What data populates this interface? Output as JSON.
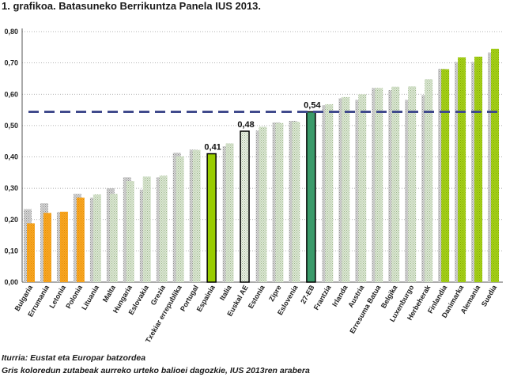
{
  "title": "1. grafikoa. Batasuneko Berrikuntza Panela IUS 2013.",
  "notes": {
    "source": "Iturria: Eustat eta Europar batzordea",
    "grey_bars": "Gris koloredun zutabeak aurreko urteko balioei dagozkie, IUS 2013ren arabera"
  },
  "colors": {
    "grey_bar": "#c8c8c8",
    "orange": "#f7a21e",
    "light_green": "#d9e8d3",
    "bright_green": "#99cc00",
    "dark_green": "#3a9a6a",
    "reference_line": "#404a8c"
  },
  "chart_data": {
    "type": "bar",
    "title": "1. grafikoa. Batasuneko Berrikuntza Panela IUS 2013.",
    "ylim": [
      0,
      0.8
    ],
    "yticks": [
      "0,00",
      "0,10",
      "0,20",
      "0,30",
      "0,40",
      "0,50",
      "0,60",
      "0,70",
      "0,80"
    ],
    "ytick_values": [
      0,
      0.1,
      0.2,
      0.3,
      0.4,
      0.5,
      0.6,
      0.7,
      0.8
    ],
    "grid": true,
    "reference_line": {
      "label": "27-EB",
      "value": 0.544
    },
    "categories": [
      "Bulgaria",
      "Errumania",
      "Letonia",
      "Polonia",
      "Lituania",
      "Malta",
      "Hungaria",
      "Eslovakia",
      "Grezia",
      "Txekiar errepublika",
      "Portugal",
      "Espainia",
      "Italia",
      "Euskal AE",
      "Estonia",
      "Zipre",
      "Eslovenia",
      "27-EB",
      "Frantzia",
      "Irlanda",
      "Austria",
      "Erresuma Batua",
      "Belgika",
      "Luxenburgo",
      "Herbeherak",
      "Finlandia",
      "Danimarka",
      "Alemania",
      "Suedia"
    ],
    "series": [
      {
        "name": "Aurreko urtea (grisa)",
        "values": [
          0.233,
          0.252,
          0.224,
          0.282,
          0.27,
          0.3,
          0.335,
          0.295,
          0.335,
          0.413,
          0.423,
          0.404,
          0.434,
          0.475,
          0.484,
          0.51,
          0.515,
          0.544,
          0.565,
          0.587,
          0.582,
          0.62,
          0.613,
          0.582,
          0.597,
          0.681,
          0.703,
          0.703,
          0.733
        ]
      },
      {
        "name": "IUS 2013",
        "values": [
          0.188,
          0.221,
          0.225,
          0.27,
          0.28,
          0.282,
          0.323,
          0.337,
          0.34,
          0.402,
          0.422,
          0.41,
          0.443,
          0.482,
          0.496,
          0.508,
          0.512,
          0.544,
          0.568,
          0.591,
          0.6,
          0.62,
          0.624,
          0.625,
          0.648,
          0.68,
          0.718,
          0.72,
          0.745
        ]
      }
    ],
    "bar_groups": [
      "orange",
      "orange",
      "orange",
      "orange",
      "light",
      "light",
      "light",
      "light",
      "light",
      "light",
      "light",
      "highlight_espainia",
      "light",
      "highlight_euskal",
      "light",
      "light",
      "light",
      "highlight_eb",
      "light",
      "light",
      "light",
      "light",
      "light",
      "light",
      "light",
      "bright",
      "bright",
      "bright",
      "bright"
    ],
    "data_labels": [
      {
        "category": "Espainia",
        "text": "0,41"
      },
      {
        "category": "Euskal AE",
        "text": "0,48"
      },
      {
        "category": "27-EB",
        "text": "0,54"
      }
    ]
  }
}
